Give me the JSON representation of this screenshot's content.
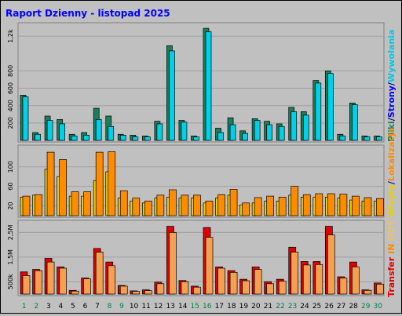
{
  "title": "Raport Dzienny -  listopad 2025",
  "side_label_top": [
    {
      "text": "Pliki",
      "color": "#1a7f5a"
    },
    {
      "text": "/",
      "color": "#000080"
    },
    {
      "text": "Strony",
      "color": "#0000ff"
    },
    {
      "text": "/",
      "color": "#000080"
    },
    {
      "text": "Wywołania",
      "color": "#00c8e8"
    }
  ],
  "side_label_mid": [
    {
      "text": "Wizyty",
      "color": "#e8d000"
    },
    {
      "text": "/",
      "color": "#000080"
    },
    {
      "text": "Lokalizacje",
      "color": "#ff8c00"
    }
  ],
  "side_label_bot": [
    {
      "text": "Transfer",
      "color": "#e00000"
    },
    {
      "text": " IN ",
      "color": "#ff8c00"
    },
    {
      "text": "OUT",
      "color": "#f0c060"
    }
  ],
  "colors": {
    "hits": "#00d0e8",
    "files": "#1a7f5a",
    "pages": "#0030ff",
    "visits": "#e8d000",
    "sites": "#ff8c00",
    "kbytes": "#e00000",
    "kb_in": "#f5a050",
    "title": "#0000ff",
    "weekend_day": "#008040"
  },
  "chart_data": [
    {
      "type": "bar",
      "panel": "hits-files-pages",
      "categories": [
        "1",
        "2",
        "3",
        "4",
        "5",
        "6",
        "7",
        "8",
        "9",
        "10",
        "11",
        "12",
        "13",
        "14",
        "15",
        "16",
        "17",
        "18",
        "19",
        "20",
        "21",
        "22",
        "23",
        "24",
        "25",
        "26",
        "27",
        "28",
        "29",
        "30"
      ],
      "weekend_days": [
        "1",
        "2",
        "8",
        "9",
        "15",
        "16",
        "22",
        "23",
        "29",
        "30"
      ],
      "ytick_labels": [
        "200",
        "400",
        "600",
        "800",
        "1,2k"
      ],
      "ylim": [
        0,
        1300
      ],
      "series": [
        {
          "key": "files",
          "values": [
            520,
            90,
            280,
            240,
            70,
            90,
            370,
            280,
            70,
            60,
            50,
            220,
            1090,
            230,
            50,
            1290,
            140,
            260,
            110,
            250,
            220,
            190,
            380,
            330,
            690,
            800,
            70,
            430,
            50,
            50
          ]
        },
        {
          "key": "hits",
          "values": [
            500,
            70,
            230,
            190,
            50,
            60,
            240,
            160,
            60,
            40,
            40,
            190,
            1030,
            210,
            40,
            1250,
            90,
            180,
            80,
            230,
            180,
            160,
            330,
            290,
            660,
            770,
            50,
            410,
            40,
            40
          ]
        },
        {
          "key": "pages",
          "values": [
            300,
            20,
            90,
            70,
            30,
            20,
            110,
            40,
            30,
            20,
            15,
            70,
            400,
            90,
            20,
            600,
            40,
            60,
            30,
            80,
            60,
            50,
            120,
            100,
            250,
            300,
            25,
            160,
            20,
            20
          ]
        }
      ]
    },
    {
      "type": "bar",
      "panel": "visits-sites",
      "categories": [
        "1",
        "2",
        "3",
        "4",
        "5",
        "6",
        "7",
        "8",
        "9",
        "10",
        "11",
        "12",
        "13",
        "14",
        "15",
        "16",
        "17",
        "18",
        "19",
        "20",
        "21",
        "22",
        "23",
        "24",
        "25",
        "26",
        "27",
        "28",
        "29",
        "30"
      ],
      "weekend_days": [
        "1",
        "2",
        "8",
        "9",
        "15",
        "16",
        "22",
        "23",
        "29",
        "30"
      ],
      "ytick_labels": [
        "20",
        "60",
        "100"
      ],
      "ylim": [
        0,
        135
      ],
      "series": [
        {
          "key": "visits",
          "values": [
            38,
            42,
            95,
            80,
            40,
            40,
            72,
            90,
            36,
            30,
            26,
            36,
            38,
            36,
            36,
            26,
            36,
            42,
            22,
            26,
            30,
            30,
            42,
            38,
            38,
            38,
            36,
            32,
            30,
            30
          ]
        },
        {
          "key": "sites",
          "values": [
            40,
            43,
            130,
            115,
            49,
            49,
            130,
            131,
            51,
            36,
            30,
            42,
            53,
            42,
            42,
            30,
            43,
            54,
            26,
            37,
            40,
            38,
            60,
            43,
            45,
            45,
            44,
            40,
            37,
            35
          ]
        }
      ]
    },
    {
      "type": "bar",
      "panel": "transfer",
      "categories": [
        "1",
        "2",
        "3",
        "4",
        "5",
        "6",
        "7",
        "8",
        "9",
        "10",
        "11",
        "12",
        "13",
        "14",
        "15",
        "16",
        "17",
        "18",
        "19",
        "20",
        "21",
        "22",
        "23",
        "24",
        "25",
        "26",
        "27",
        "28",
        "29",
        "30"
      ],
      "weekend_days": [
        "1",
        "2",
        "8",
        "9",
        "15",
        "16",
        "22",
        "23",
        "29",
        "30"
      ],
      "ytick_labels": [
        "500k",
        "1,5M",
        "2,5M"
      ],
      "ylim": [
        0,
        2800000
      ],
      "series": [
        {
          "key": "kbytes",
          "values": [
            900000,
            1000000,
            1450000,
            1100000,
            150000,
            650000,
            1850000,
            1300000,
            350000,
            130000,
            170000,
            480000,
            2750000,
            550000,
            320000,
            2700000,
            1100000,
            950000,
            600000,
            1100000,
            500000,
            600000,
            1900000,
            1320000,
            1320000,
            2750000,
            700000,
            1300000,
            170000,
            450000
          ]
        },
        {
          "key": "kb_in",
          "values": [
            750000,
            950000,
            1300000,
            1050000,
            120000,
            620000,
            1700000,
            1150000,
            320000,
            110000,
            140000,
            420000,
            2500000,
            500000,
            280000,
            2300000,
            1050000,
            880000,
            540000,
            1000000,
            420000,
            520000,
            1700000,
            1180000,
            1200000,
            2400000,
            650000,
            1100000,
            150000,
            400000
          ]
        }
      ]
    }
  ]
}
